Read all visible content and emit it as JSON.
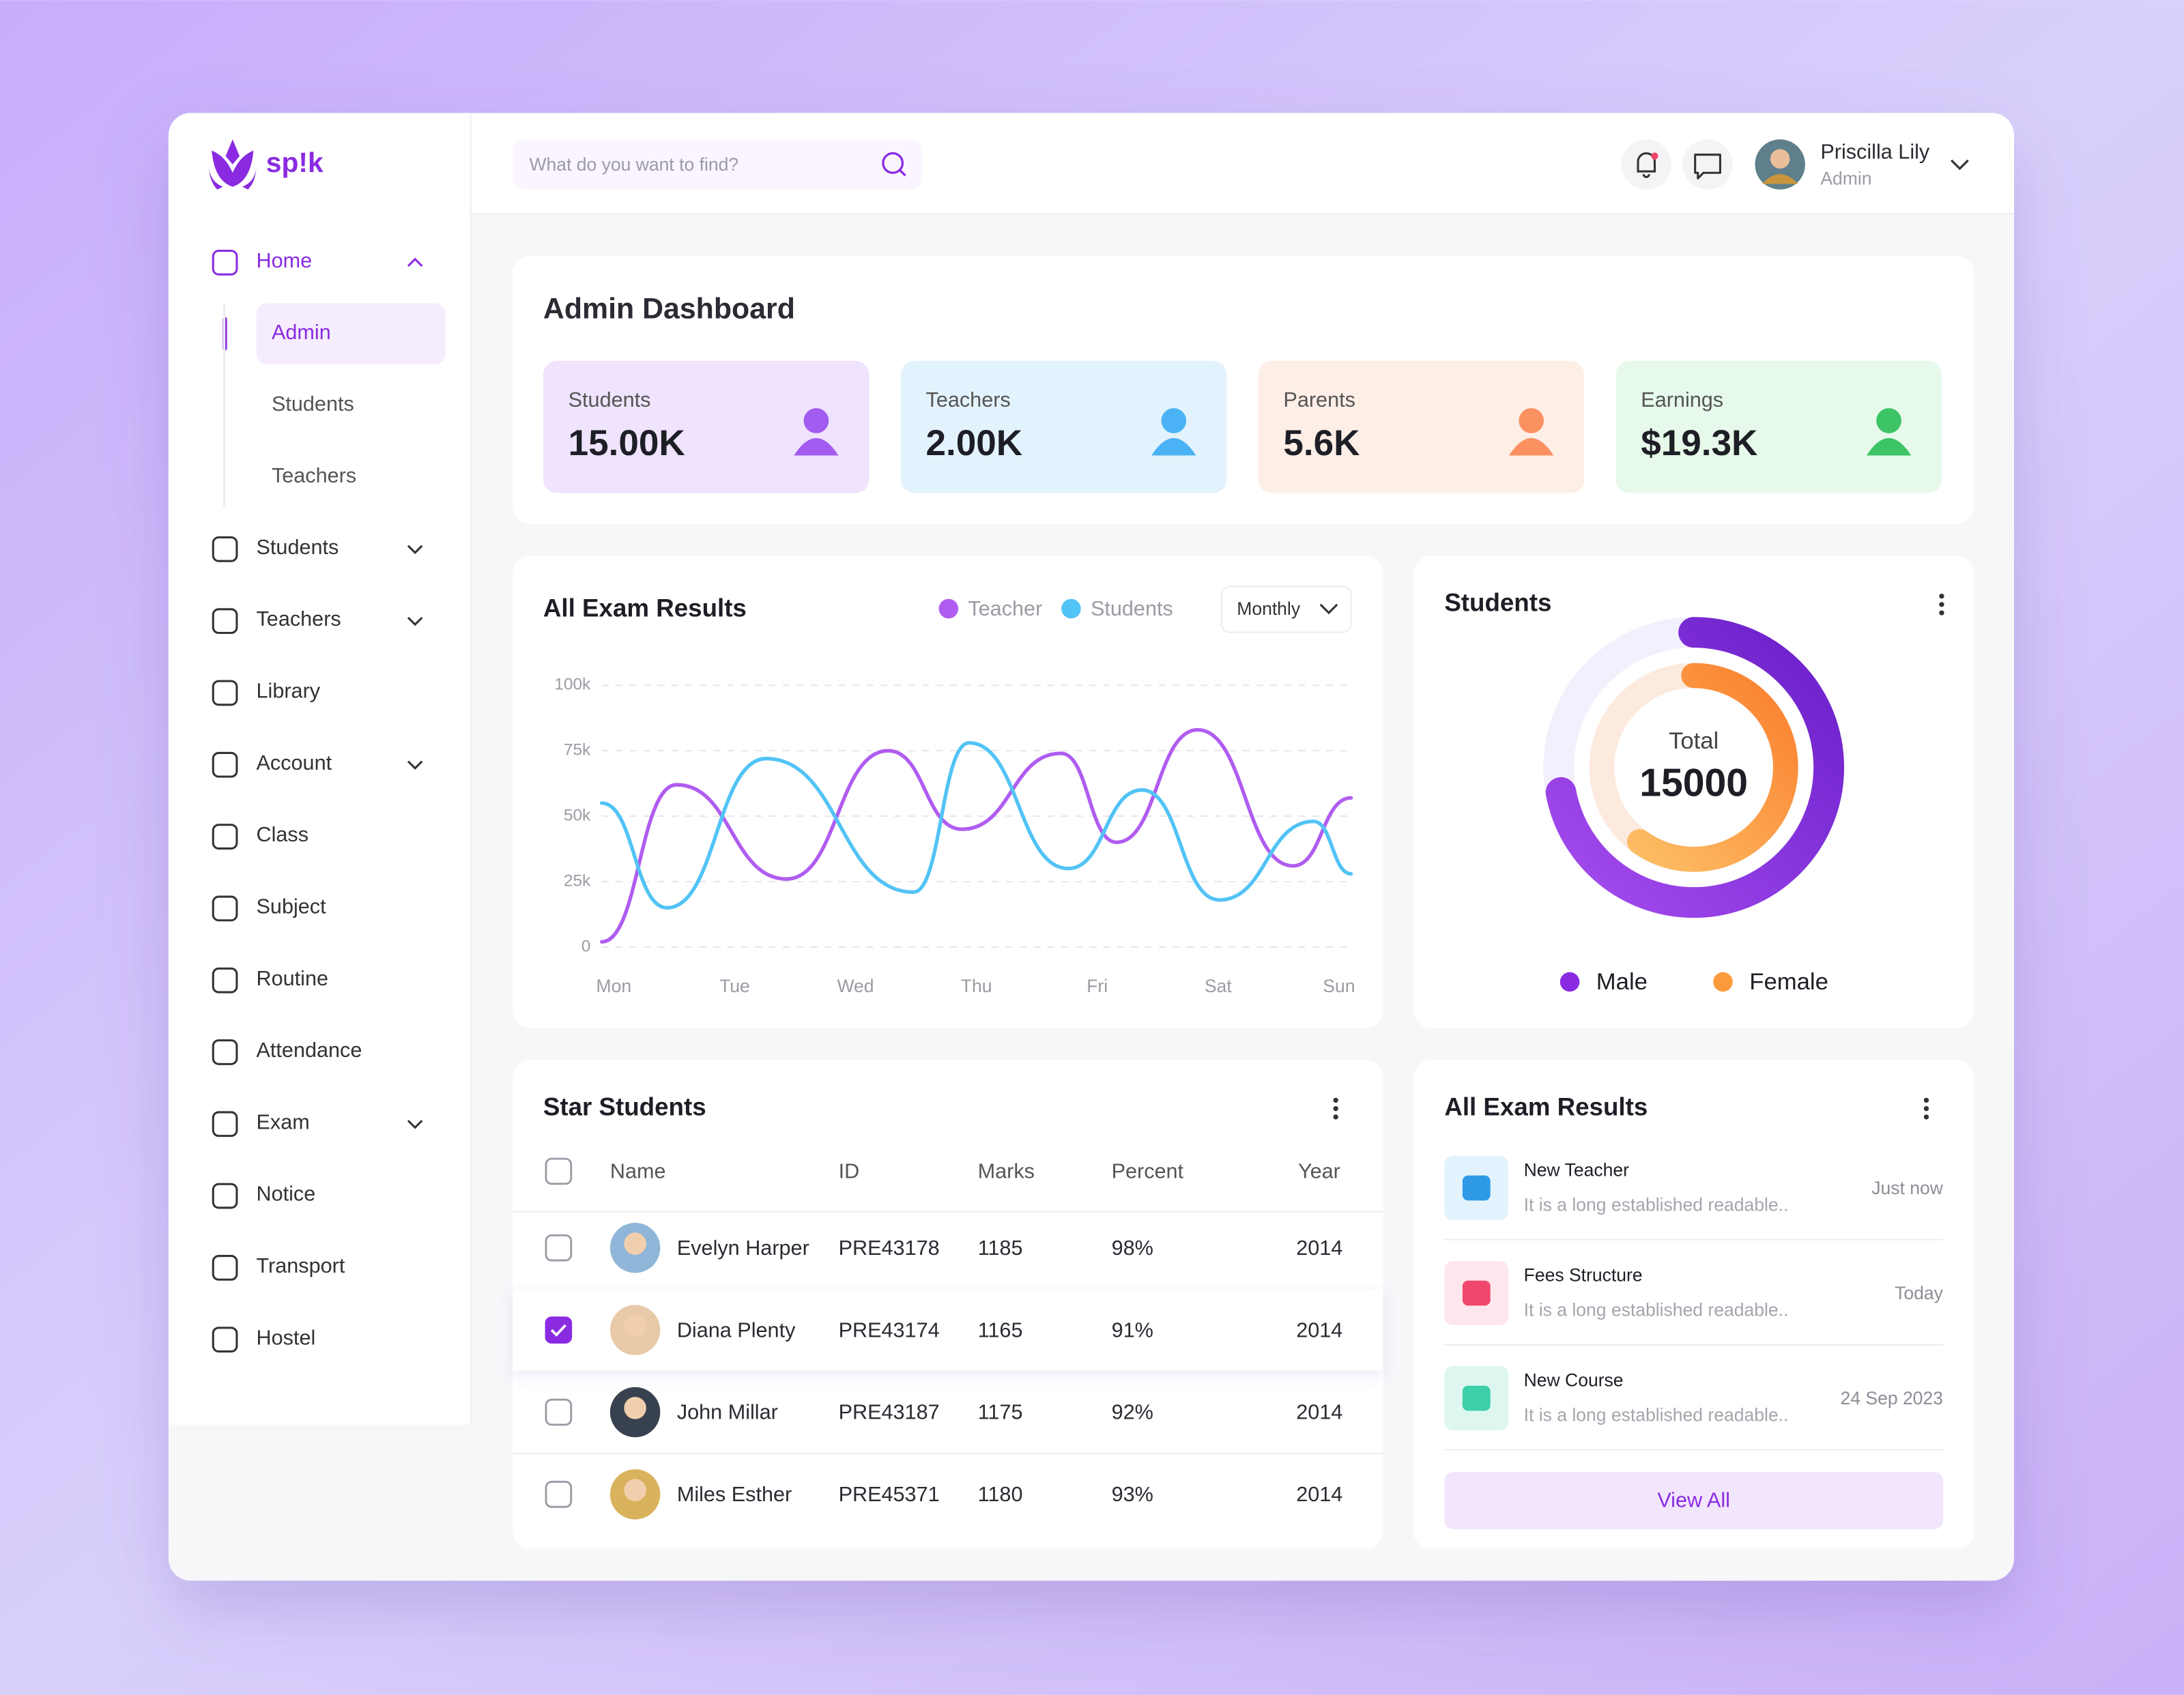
{
  "brand": "sp!k",
  "search_placeholder": "What do you want to find?",
  "user": {
    "name": "Priscilla Lily",
    "role": "Admin"
  },
  "nav": [
    {
      "label": "Home",
      "expanded": true,
      "children": [
        {
          "label": "Admin",
          "active": true
        },
        {
          "label": "Students"
        },
        {
          "label": "Teachers"
        }
      ]
    },
    {
      "label": "Students",
      "expandable": true
    },
    {
      "label": "Teachers",
      "expandable": true
    },
    {
      "label": "Library"
    },
    {
      "label": "Account",
      "expandable": true
    },
    {
      "label": "Class"
    },
    {
      "label": "Subject"
    },
    {
      "label": "Routine"
    },
    {
      "label": "Attendance"
    },
    {
      "label": "Exam",
      "expandable": true
    },
    {
      "label": "Notice"
    },
    {
      "label": "Transport"
    },
    {
      "label": "Hostel"
    }
  ],
  "page_title": "Admin Dashboard",
  "stats": [
    {
      "label": "Students",
      "value": "15.00K",
      "color": "#efe3fd",
      "icon_color": "#a25cf0"
    },
    {
      "label": "Teachers",
      "value": "2.00K",
      "color": "#e3f3fd",
      "icon_color": "#4bb3f5"
    },
    {
      "label": "Parents",
      "value": "5.6K",
      "color": "#fdeee6",
      "icon_color": "#fb9060"
    },
    {
      "label": "Earnings",
      "value": "$19.3K",
      "color": "#e6f9ea",
      "icon_color": "#3cc466"
    }
  ],
  "chart_data": [
    {
      "type": "line",
      "title": "All Exam Results",
      "period": "Monthly",
      "xlim": [
        -0.1,
        6.1
      ],
      "xticks": [
        {
          "value": 0,
          "label": "Mon"
        },
        {
          "value": 1,
          "label": "Tue"
        },
        {
          "value": 2,
          "label": "Wed"
        },
        {
          "value": 3,
          "label": "Thu"
        },
        {
          "value": 4,
          "label": "Fri"
        },
        {
          "value": 5,
          "label": "Sat"
        },
        {
          "value": 6,
          "label": "Sun"
        }
      ],
      "ylim": [
        0,
        100
      ],
      "yticks": [
        0,
        {
          "value": 25,
          "label": "25k"
        },
        {
          "value": 50,
          "label": "50k"
        },
        {
          "value": 75,
          "label": "75k"
        },
        {
          "value": 100,
          "label": "100k"
        }
      ],
      "grid": true,
      "series": [
        {
          "name": "Teacher",
          "color": "#b05cf0",
          "x": [
            -0.1,
            0.52,
            1.43,
            2.27,
            2.88,
            3.7,
            4.16,
            4.83,
            5.62,
            6.1
          ],
          "values": [
            2,
            62,
            26,
            75,
            45,
            74,
            40,
            83,
            31,
            57
          ]
        },
        {
          "name": "Students",
          "color": "#52c3f5",
          "x": [
            -0.1,
            0.44,
            1.26,
            2.48,
            2.94,
            3.76,
            4.37,
            5.01,
            5.79,
            6.1
          ],
          "values": [
            55,
            15,
            72,
            21,
            78,
            30,
            60,
            18,
            48,
            28
          ]
        }
      ]
    },
    {
      "type": "donut",
      "title": "Students",
      "center_label": "Total",
      "center_value": "15000",
      "series": [
        {
          "name": "Male",
          "color": "#8a2be2",
          "value": 72
        },
        {
          "name": "Female",
          "color": "#fb9a3c",
          "value": 60
        }
      ]
    }
  ],
  "star_students": {
    "title": "Star Students",
    "columns": [
      "Name",
      "ID",
      "Marks",
      "Percent",
      "Year"
    ],
    "rows": [
      {
        "name": "Evelyn Harper",
        "id": "PRE43178",
        "marks": "1185",
        "percent": "98%",
        "year": "2014",
        "checked": false
      },
      {
        "name": "Diana Plenty",
        "id": "PRE43174",
        "marks": "1165",
        "percent": "91%",
        "year": "2014",
        "checked": true
      },
      {
        "name": "John Millar",
        "id": "PRE43187",
        "marks": "1175",
        "percent": "92%",
        "year": "2014",
        "checked": false
      },
      {
        "name": "Miles Esther",
        "id": "PRE45371",
        "marks": "1180",
        "percent": "93%",
        "year": "2014",
        "checked": false
      }
    ]
  },
  "notifications": {
    "title": "All Exam Results",
    "items": [
      {
        "title": "New Teacher",
        "text": "It is a long established readable..",
        "time": "Just now",
        "color": "#e3f3fd",
        "icon_color": "#2f9ae8"
      },
      {
        "title": "Fees Structure",
        "text": "It is a long established readable..",
        "time": "Today",
        "color": "#fde7ec",
        "icon_color": "#f0476d"
      },
      {
        "title": "New Course",
        "text": "It is a long established readable..",
        "time": "24 Sep 2023",
        "color": "#ddf7f0",
        "icon_color": "#3ccfa8"
      }
    ],
    "button": "View All"
  }
}
